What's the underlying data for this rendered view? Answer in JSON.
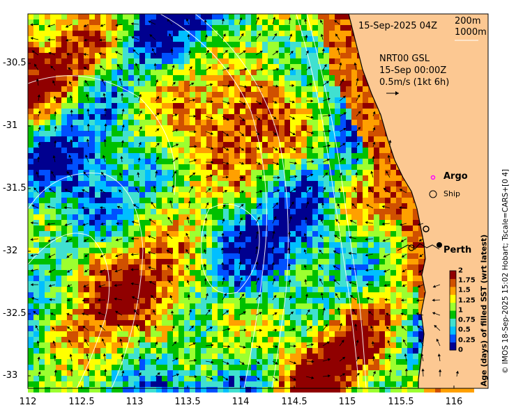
{
  "header": {
    "datetime": "15-Sep-2025 04Z",
    "depth_200": "200m",
    "depth_1000": "1000m"
  },
  "current_box": {
    "product": "NRT00 GSL",
    "time": "15-Sep 00:00Z",
    "scale": "0.5m/s (1kt 6h)"
  },
  "legend": {
    "argo": "Argo",
    "ship": "Ship",
    "city": "Perth"
  },
  "colorbar": {
    "title": "Age (days) of filled SST (wrt latest)",
    "ticks": [
      "2",
      "1.75",
      "1.5",
      "1.25",
      "1",
      "0.75",
      "0.5",
      "0.25",
      "0"
    ],
    "colors": [
      "#00008f",
      "#0050ff",
      "#00bfff",
      "#40e0d0",
      "#00c000",
      "#9cff30",
      "#ffff00",
      "#ffa000",
      "#d05000",
      "#900000"
    ]
  },
  "axes": {
    "x_ticks": [
      "112",
      "112.5",
      "113",
      "113.5",
      "114",
      "114.5",
      "115",
      "115.5",
      "116"
    ],
    "y_ticks": [
      "-30.5",
      "-31",
      "-31.5",
      "-32",
      "-32.5",
      "-33"
    ]
  },
  "credit": "© IMOS 18-Sep-2025 15:02 Hobart; Tscale=CARS+[0 4]",
  "colors": {
    "land": "#fcc892",
    "coast": "#000000"
  }
}
